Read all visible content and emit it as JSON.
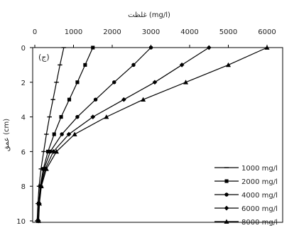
{
  "chart_data": {
    "type": "line",
    "title": "",
    "xlabel": "غلظت (mg/l)",
    "ylabel": "عمق (cm)",
    "panel_label": "(ج)",
    "x_axis_position": "top",
    "y_inverted": true,
    "xlim": [
      0,
      6500
    ],
    "ylim": [
      0,
      10
    ],
    "x_ticks": [
      0,
      1000,
      2000,
      3000,
      4000,
      5000,
      6000
    ],
    "y_ticks": [
      0,
      2,
      4,
      6,
      8,
      10
    ],
    "grid": false,
    "legend_position": "bottom-right",
    "depth": [
      0,
      1,
      2,
      3,
      4,
      5,
      6,
      7,
      8,
      9,
      10
    ],
    "series": [
      {
        "name": "1000 mg/l",
        "marker": "dash",
        "values": [
          750,
          650,
          560,
          470,
          380,
          300,
          230,
          160,
          110,
          80,
          60
        ]
      },
      {
        "name": "2000 mg/l",
        "marker": "square",
        "values": [
          1500,
          1300,
          1100,
          890,
          680,
          500,
          340,
          220,
          140,
          100,
          80
        ]
      },
      {
        "name": "4000 mg/l",
        "marker": "circle",
        "values": [
          3000,
          2550,
          2050,
          1570,
          1100,
          700,
          400,
          240,
          150,
          110,
          90
        ]
      },
      {
        "name": "6000 mg/l",
        "marker": "diamond",
        "values": [
          4500,
          3800,
          3100,
          2300,
          1500,
          880,
          480,
          270,
          160,
          115,
          95
        ]
      },
      {
        "name": "8000 mg/l",
        "marker": "triangle",
        "values": [
          6000,
          5000,
          3900,
          2800,
          1850,
          1030,
          560,
          300,
          170,
          120,
          100
        ]
      }
    ]
  },
  "colors": {
    "line": "#000000",
    "axis": "#000000"
  }
}
